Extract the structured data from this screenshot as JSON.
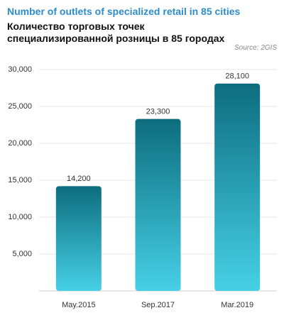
{
  "chart_data": {
    "type": "bar",
    "title": "Number of outlets of specialized retail in 85 cities",
    "subtitle": "Количество торговых точек специализированной розницы в 85 городах",
    "source": "Source: 2GIS",
    "categories": [
      "May.2015",
      "Sep.2017",
      "Mar.2019"
    ],
    "values": [
      14200,
      23300,
      28100
    ],
    "value_labels": [
      "14,200",
      "23,300",
      "28,100"
    ],
    "color": "#0d6d7e",
    "color_bottom": "#46d0e6",
    "ylim": [
      0,
      30000
    ],
    "yticks": [
      {
        "value": 5000,
        "label": "5,000"
      },
      {
        "value": 10000,
        "label": "10,000"
      },
      {
        "value": 15000,
        "label": "15,000"
      },
      {
        "value": 20000,
        "label": "20,000"
      },
      {
        "value": 25000,
        "label": "25,000"
      },
      {
        "value": 30000,
        "label": "30,000"
      }
    ],
    "grid": true
  }
}
